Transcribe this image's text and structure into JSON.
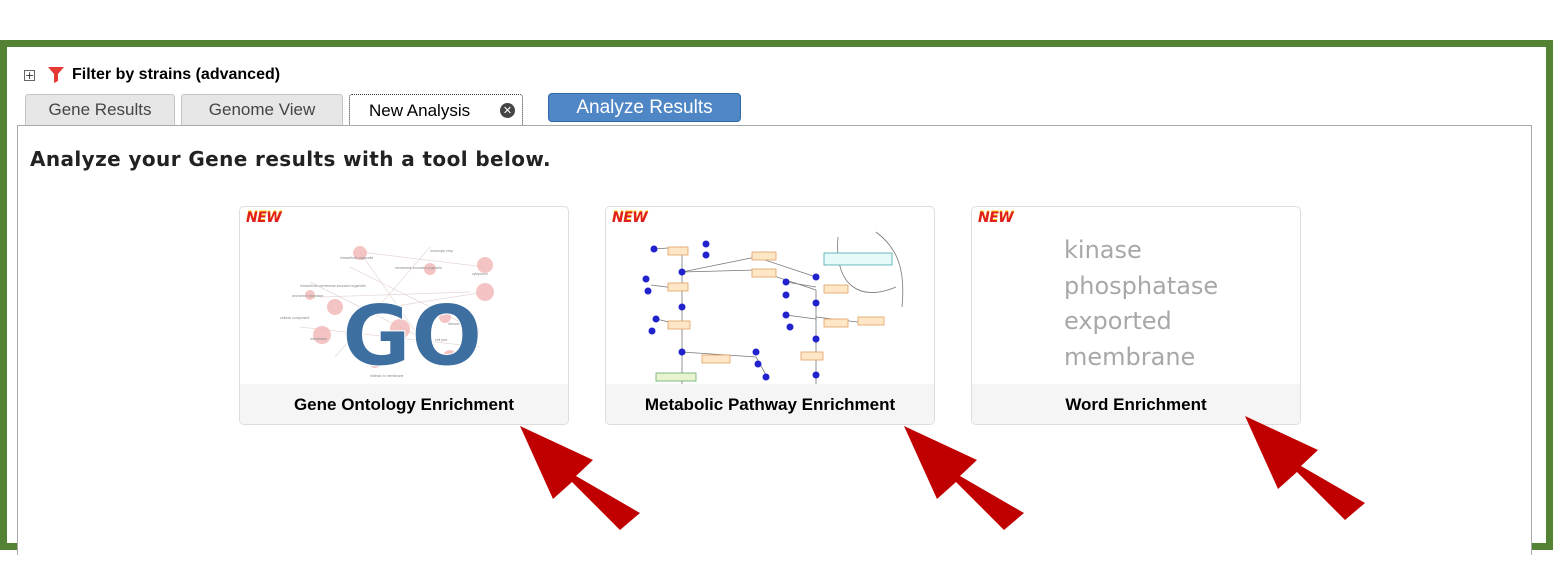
{
  "filter": {
    "label": "Filter by strains (advanced)",
    "expand_symbol": "+"
  },
  "tabs": [
    {
      "label": "Gene Results",
      "active": false
    },
    {
      "label": "Genome View",
      "active": false
    },
    {
      "label": "New Analysis",
      "active": true,
      "close_symbol": "✕"
    }
  ],
  "analyze_button": {
    "label": "Analyze Results"
  },
  "panel": {
    "heading": "Analyze your Gene results with a tool below."
  },
  "tools": [
    {
      "name": "Gene Ontology Enrichment",
      "badge": "NEW",
      "thumbnail_text": "GO"
    },
    {
      "name": "Metabolic Pathway Enrichment",
      "badge": "NEW"
    },
    {
      "name": "Word Enrichment",
      "badge": "NEW",
      "words": [
        "kinase",
        "phosphatase",
        "exported",
        "membrane"
      ]
    }
  ],
  "colors": {
    "frame_border": "#548235",
    "analyze_button": "#4f86c6",
    "arrow": "#c00000",
    "new_badge": "#e02020",
    "go_text": "#3d6fa0"
  },
  "icons": [
    "expand-icon",
    "funnel-icon",
    "close-icon",
    "arrow-icon"
  ]
}
